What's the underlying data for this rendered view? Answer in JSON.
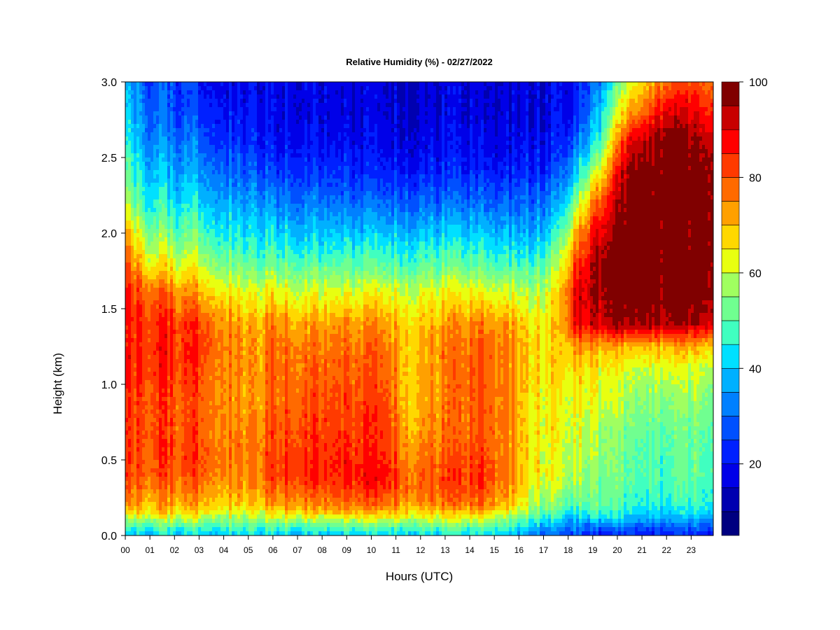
{
  "chart_data": {
    "type": "heatmap",
    "title": "Relative Humidity (%) - 02/27/2022",
    "xlabel": "Hours (UTC)",
    "ylabel": "Height (km)",
    "x_ticks": [
      "00",
      "01",
      "02",
      "03",
      "04",
      "05",
      "06",
      "07",
      "08",
      "09",
      "10",
      "11",
      "12",
      "13",
      "14",
      "15",
      "16",
      "17",
      "18",
      "19",
      "20",
      "21",
      "22",
      "23"
    ],
    "xlim": [
      0,
      23.9
    ],
    "y_ticks": [
      "0.0",
      "0.5",
      "1.0",
      "1.5",
      "2.0",
      "2.5",
      "3.0"
    ],
    "ylim": [
      0,
      3.0
    ],
    "colorbar": {
      "ticks": [
        "20",
        "40",
        "60",
        "80",
        "100"
      ],
      "range": [
        5,
        100
      ],
      "levels": [
        5,
        10,
        15,
        20,
        25,
        30,
        35,
        40,
        45,
        50,
        55,
        60,
        65,
        70,
        75,
        80,
        85,
        90,
        95,
        100
      ],
      "colors": [
        "#000080",
        "#0000b0",
        "#0000e8",
        "#0020ff",
        "#0050ff",
        "#0080ff",
        "#00b0ff",
        "#00e0ff",
        "#40ffc0",
        "#70ff90",
        "#a0ff60",
        "#e8ff10",
        "#ffd800",
        "#ffa000",
        "#ff6a00",
        "#ff3a00",
        "#ff0000",
        "#c80000",
        "#800000"
      ]
    },
    "grid": false,
    "profiles": {
      "heights_km": [
        0.0,
        0.05,
        0.1,
        0.15,
        0.2,
        0.3,
        0.4,
        0.5,
        0.7,
        0.9,
        1.1,
        1.25,
        1.4,
        1.6,
        1.8,
        2.0,
        2.2,
        2.4,
        2.6,
        2.8,
        3.0
      ],
      "times_h": [
        0,
        1,
        3,
        5.3,
        6,
        7,
        10.5,
        11.5,
        14.5,
        15.8,
        16.3,
        17.5,
        18.3,
        19.2,
        20.5,
        22,
        23.9
      ],
      "rh": [
        [
          40,
          45,
          55,
          65,
          72,
          78,
          82,
          82,
          82,
          82,
          85,
          85,
          85,
          85,
          80,
          70,
          58,
          50,
          45,
          40,
          38
        ],
        [
          40,
          48,
          58,
          68,
          72,
          76,
          80,
          82,
          82,
          82,
          85,
          85,
          85,
          80,
          65,
          55,
          45,
          40,
          35,
          30,
          28
        ],
        [
          42,
          48,
          58,
          66,
          72,
          76,
          80,
          82,
          80,
          80,
          82,
          84,
          82,
          72,
          60,
          50,
          42,
          35,
          30,
          25,
          22
        ],
        [
          42,
          48,
          55,
          62,
          68,
          72,
          75,
          75,
          74,
          72,
          72,
          72,
          70,
          62,
          50,
          42,
          35,
          28,
          22,
          20,
          18
        ],
        [
          40,
          48,
          58,
          66,
          72,
          78,
          82,
          82,
          80,
          78,
          78,
          78,
          75,
          65,
          52,
          42,
          34,
          25,
          20,
          18,
          18
        ],
        [
          40,
          48,
          58,
          68,
          74,
          80,
          84,
          84,
          82,
          80,
          78,
          76,
          72,
          62,
          50,
          40,
          32,
          25,
          20,
          18,
          18
        ],
        [
          42,
          50,
          60,
          70,
          78,
          85,
          88,
          86,
          84,
          82,
          80,
          78,
          74,
          64,
          50,
          40,
          30,
          22,
          18,
          16,
          16
        ],
        [
          42,
          50,
          60,
          68,
          74,
          78,
          78,
          76,
          72,
          70,
          70,
          70,
          68,
          62,
          50,
          40,
          30,
          22,
          18,
          16,
          16
        ],
        [
          42,
          50,
          60,
          68,
          76,
          82,
          84,
          82,
          80,
          80,
          80,
          80,
          76,
          64,
          50,
          40,
          30,
          22,
          18,
          16,
          16
        ],
        [
          40,
          45,
          52,
          60,
          68,
          72,
          74,
          74,
          74,
          74,
          74,
          74,
          72,
          62,
          48,
          38,
          30,
          22,
          18,
          16,
          16
        ],
        [
          32,
          40,
          48,
          55,
          60,
          64,
          66,
          66,
          66,
          66,
          68,
          68,
          66,
          58,
          46,
          36,
          28,
          22,
          18,
          16,
          16
        ],
        [
          28,
          34,
          42,
          48,
          54,
          58,
          62,
          62,
          64,
          64,
          66,
          66,
          66,
          64,
          55,
          44,
          34,
          26,
          20,
          18,
          18
        ],
        [
          28,
          32,
          38,
          44,
          50,
          55,
          58,
          60,
          62,
          64,
          68,
          75,
          88,
          90,
          82,
          70,
          55,
          40,
          30,
          22,
          20
        ],
        [
          22,
          30,
          40,
          48,
          52,
          54,
          54,
          56,
          58,
          62,
          65,
          72,
          92,
          95,
          96,
          90,
          80,
          62,
          45,
          38,
          32
        ],
        [
          22,
          28,
          36,
          42,
          46,
          48,
          50,
          50,
          52,
          56,
          60,
          70,
          96,
          100,
          100,
          100,
          100,
          98,
          90,
          72,
          60
        ],
        [
          22,
          28,
          36,
          42,
          46,
          48,
          50,
          50,
          52,
          56,
          62,
          72,
          96,
          100,
          100,
          100,
          100,
          100,
          100,
          92,
          80
        ],
        [
          24,
          30,
          38,
          44,
          48,
          50,
          52,
          52,
          54,
          58,
          62,
          72,
          95,
          100,
          100,
          100,
          100,
          100,
          96,
          88,
          82
        ]
      ]
    }
  }
}
